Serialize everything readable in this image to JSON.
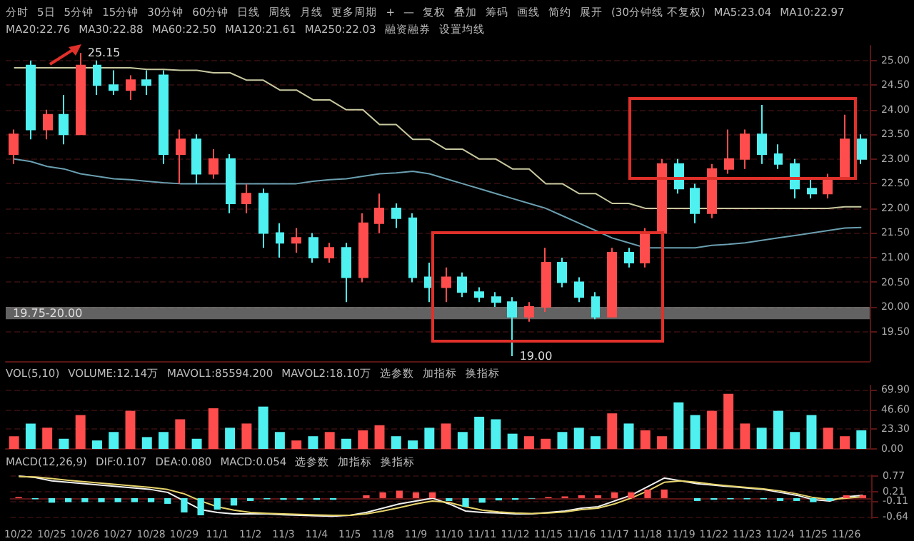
{
  "chart_data": [
    {
      "type": "candlestick",
      "annotations": [
        "分时",
        "5日",
        "5分钟",
        "15分钟",
        "30分钟",
        "60分钟",
        "日线",
        "周线",
        "月线",
        "更多周期",
        "+",
        "—",
        "复权",
        "叠加",
        "筹码",
        "画线",
        "简约",
        "展开",
        "(30分钟线 不复权)",
        "MA5:23.04",
        "MA10:22.97",
        "MA20:22.76",
        "MA30:22.88",
        "MA60:22.50",
        "MA120:21.61",
        "MA250:22.03",
        "融资融券",
        "设置均线",
        {
          "text": "25.15",
          "x": "10/26",
          "y": 25.15
        },
        {
          "text": "19.00",
          "x": "11/12",
          "y": 19.0
        }
      ],
      "categories": [
        "10/22",
        null,
        "10/25",
        null,
        "10/26",
        null,
        "10/27",
        null,
        "10/28",
        null,
        "10/29",
        null,
        "11/1",
        null,
        "11/2",
        null,
        "11/3",
        null,
        "11/4",
        null,
        "11/5",
        null,
        "11/8",
        null,
        "11/9",
        null,
        "11/10",
        null,
        "11/11",
        null,
        "11/12",
        null,
        "11/15",
        null,
        "11/16",
        null,
        "11/17",
        null,
        "11/18",
        null,
        "11/19",
        null,
        "11/22",
        null,
        "11/23",
        null,
        "11/24",
        null,
        "11/25",
        null,
        "11/26",
        null
      ],
      "ohlc": [
        [
          23.1,
          23.6,
          22.9,
          23.5
        ],
        [
          24.9,
          25.0,
          23.4,
          23.6
        ],
        [
          23.6,
          24.0,
          23.4,
          23.9
        ],
        [
          23.9,
          24.3,
          23.3,
          23.5
        ],
        [
          23.5,
          25.15,
          23.5,
          24.9
        ],
        [
          24.9,
          25.0,
          24.3,
          24.5
        ],
        [
          24.5,
          24.8,
          24.3,
          24.4
        ],
        [
          24.4,
          24.7,
          24.2,
          24.6
        ],
        [
          24.6,
          24.8,
          24.3,
          24.5
        ],
        [
          24.7,
          24.8,
          22.9,
          23.1
        ],
        [
          23.1,
          23.6,
          22.5,
          23.4
        ],
        [
          23.4,
          23.5,
          22.5,
          22.7
        ],
        [
          22.7,
          23.2,
          22.6,
          23.0
        ],
        [
          23.0,
          23.1,
          21.9,
          22.1
        ],
        [
          22.1,
          22.5,
          21.9,
          22.3
        ],
        [
          22.3,
          22.4,
          21.2,
          21.5
        ],
        [
          21.5,
          21.7,
          21.0,
          21.3
        ],
        [
          21.3,
          21.6,
          21.1,
          21.4
        ],
        [
          21.4,
          21.5,
          20.9,
          21.0
        ],
        [
          21.0,
          21.3,
          20.9,
          21.2
        ],
        [
          21.2,
          21.3,
          20.1,
          20.6
        ],
        [
          20.6,
          21.9,
          20.5,
          21.7
        ],
        [
          21.7,
          22.3,
          21.5,
          22.0
        ],
        [
          22.0,
          22.1,
          21.6,
          21.8
        ],
        [
          21.8,
          21.9,
          20.5,
          20.6
        ],
        [
          20.6,
          20.9,
          20.1,
          20.4
        ],
        [
          20.4,
          20.8,
          20.1,
          20.6
        ],
        [
          20.6,
          20.7,
          20.2,
          20.3
        ],
        [
          20.3,
          20.4,
          20.1,
          20.2
        ],
        [
          20.2,
          20.3,
          20.0,
          20.1
        ],
        [
          20.1,
          20.2,
          19.0,
          19.8
        ],
        [
          19.8,
          20.1,
          19.7,
          20.0
        ],
        [
          20.0,
          21.2,
          19.9,
          20.9
        ],
        [
          20.9,
          21.0,
          20.4,
          20.5
        ],
        [
          20.5,
          20.6,
          20.1,
          20.2
        ],
        [
          20.2,
          20.3,
          19.75,
          19.8
        ],
        [
          19.8,
          21.2,
          19.8,
          21.1
        ],
        [
          21.1,
          21.2,
          20.8,
          20.9
        ],
        [
          20.9,
          21.6,
          20.8,
          21.5
        ],
        [
          21.5,
          23.0,
          21.4,
          22.9
        ],
        [
          22.9,
          23.0,
          22.3,
          22.4
        ],
        [
          22.4,
          22.5,
          21.7,
          21.9
        ],
        [
          21.9,
          22.9,
          21.8,
          22.8
        ],
        [
          22.8,
          23.6,
          22.7,
          23.0
        ],
        [
          23.0,
          23.6,
          22.8,
          23.5
        ],
        [
          23.5,
          24.1,
          22.9,
          23.1
        ],
        [
          23.1,
          23.3,
          22.8,
          22.9
        ],
        [
          22.9,
          23.0,
          22.2,
          22.4
        ],
        [
          22.4,
          22.6,
          22.2,
          22.3
        ],
        [
          22.3,
          22.7,
          22.2,
          22.6
        ],
        [
          22.6,
          23.9,
          22.6,
          23.4
        ],
        [
          23.4,
          23.5,
          22.9,
          23.0
        ]
      ],
      "colors": [
        "#ff4d4d",
        "#4ff0f0",
        "#ff4d4d",
        "#4ff0f0",
        "#ff4d4d",
        "#4ff0f0",
        "#4ff0f0",
        "#ff4d4d",
        "#4ff0f0",
        "#4ff0f0",
        "#ff4d4d",
        "#4ff0f0",
        "#ff4d4d",
        "#4ff0f0",
        "#ff4d4d",
        "#4ff0f0",
        "#4ff0f0",
        "#ff4d4d",
        "#4ff0f0",
        "#ff4d4d",
        "#4ff0f0",
        "#ff4d4d",
        "#ff4d4d",
        "#4ff0f0",
        "#4ff0f0",
        "#4ff0f0",
        "#ff4d4d",
        "#4ff0f0",
        "#4ff0f0",
        "#4ff0f0",
        "#4ff0f0",
        "#ff4d4d",
        "#ff4d4d",
        "#4ff0f0",
        "#4ff0f0",
        "#4ff0f0",
        "#ff4d4d",
        "#4ff0f0",
        "#ff4d4d",
        "#ff4d4d",
        "#4ff0f0",
        "#4ff0f0",
        "#ff4d4d",
        "#ff4d4d",
        "#ff4d4d",
        "#4ff0f0",
        "#4ff0f0",
        "#4ff0f0",
        "#4ff0f0",
        "#ff4d4d",
        "#ff4d4d",
        "#4ff0f0"
      ],
      "series": [
        {
          "type": "line",
          "color": "#c8c8a0",
          "values": [
            24.85,
            24.85,
            24.85,
            24.85,
            24.85,
            24.85,
            24.85,
            24.85,
            24.82,
            24.82,
            24.8,
            24.8,
            24.75,
            24.75,
            24.6,
            24.6,
            24.4,
            24.4,
            24.2,
            24.2,
            24.0,
            24.0,
            23.7,
            23.7,
            23.4,
            23.4,
            23.2,
            23.2,
            23.0,
            23.0,
            22.8,
            22.8,
            22.5,
            22.5,
            22.3,
            22.3,
            22.1,
            22.1,
            22.0,
            22.0,
            22.0,
            22.0,
            22.0,
            22.0,
            22.0,
            22.0,
            22.0,
            22.0,
            22.0,
            22.0,
            22.03,
            22.03
          ]
        },
        {
          "type": "line",
          "color": "#6a9fb0",
          "values": [
            23.0,
            22.95,
            22.85,
            22.8,
            22.7,
            22.65,
            22.6,
            22.58,
            22.55,
            22.52,
            22.5,
            22.5,
            22.5,
            22.5,
            22.5,
            22.5,
            22.5,
            22.5,
            22.55,
            22.58,
            22.6,
            22.65,
            22.7,
            22.72,
            22.75,
            22.7,
            22.6,
            22.5,
            22.4,
            22.3,
            22.2,
            22.1,
            22.0,
            21.85,
            21.7,
            21.55,
            21.4,
            21.3,
            21.2,
            21.2,
            21.2,
            21.2,
            21.25,
            21.27,
            21.3,
            21.35,
            21.4,
            21.45,
            21.5,
            21.55,
            21.6,
            21.61
          ]
        }
      ],
      "bands": [
        {
          "axis": "y",
          "from": 19.75,
          "to": 20.0,
          "label": "19.75-20.00",
          "color": "#8c8c8c"
        }
      ],
      "ylim": [
        18.9,
        25.3
      ],
      "yticks": [
        {
          "value": 19.5,
          "label": "19.50"
        },
        {
          "value": 20,
          "label": "20.00"
        },
        {
          "value": 20.5,
          "label": "20.50"
        },
        {
          "value": 21,
          "label": "21.00"
        },
        {
          "value": 21.5,
          "label": "21.50"
        },
        {
          "value": 22,
          "label": "22.00"
        },
        {
          "value": 22.5,
          "label": "22.50"
        },
        {
          "value": 23,
          "label": "23.00"
        },
        {
          "value": 23.5,
          "label": "23.50"
        },
        {
          "value": 24,
          "label": "24.00"
        },
        {
          "value": 24.5,
          "label": "24.50"
        },
        {
          "value": 25,
          "label": "25.00"
        }
      ],
      "grid": "y",
      "tick_labels": "y"
    },
    {
      "type": "bar",
      "annotations": [
        "VOL(5,10)",
        "VOLUME:12.14万",
        "MAVOL1:85594.200",
        "MAVOL2:18.10万",
        "选参数",
        "加指标",
        "换指标"
      ],
      "categories": [
        "10/22",
        null,
        "10/25",
        null,
        "10/26",
        null,
        "10/27",
        null,
        "10/28",
        null,
        "10/29",
        null,
        "11/1",
        null,
        "11/2",
        null,
        "11/3",
        null,
        "11/4",
        null,
        "11/5",
        null,
        "11/8",
        null,
        "11/9",
        null,
        "11/10",
        null,
        "11/11",
        null,
        "11/12",
        null,
        "11/15",
        null,
        "11/16",
        null,
        "11/17",
        null,
        "11/18",
        null,
        "11/19",
        null,
        "11/22",
        null,
        "11/23",
        null,
        "11/24",
        null,
        "11/25",
        null,
        "11/26",
        null
      ],
      "values": [
        15,
        30,
        25,
        12,
        40,
        10,
        20,
        45,
        14,
        20,
        35,
        12,
        48,
        25,
        30,
        50,
        20,
        10,
        15,
        20,
        12,
        22,
        28,
        15,
        10,
        25,
        30,
        20,
        38,
        35,
        18,
        15,
        12,
        20,
        25,
        15,
        42,
        30,
        22,
        15,
        55,
        40,
        45,
        65,
        30,
        25,
        45,
        20,
        40,
        25,
        15,
        22
      ],
      "colors": [
        "#ff4d4d",
        "#4ff0f0",
        "#ff4d4d",
        "#4ff0f0",
        "#ff4d4d",
        "#4ff0f0",
        "#4ff0f0",
        "#ff4d4d",
        "#4ff0f0",
        "#4ff0f0",
        "#ff4d4d",
        "#4ff0f0",
        "#ff4d4d",
        "#4ff0f0",
        "#ff4d4d",
        "#4ff0f0",
        "#4ff0f0",
        "#ff4d4d",
        "#4ff0f0",
        "#ff4d4d",
        "#4ff0f0",
        "#ff4d4d",
        "#ff4d4d",
        "#4ff0f0",
        "#4ff0f0",
        "#4ff0f0",
        "#ff4d4d",
        "#4ff0f0",
        "#4ff0f0",
        "#4ff0f0",
        "#4ff0f0",
        "#ff4d4d",
        "#ff4d4d",
        "#4ff0f0",
        "#4ff0f0",
        "#4ff0f0",
        "#ff4d4d",
        "#4ff0f0",
        "#ff4d4d",
        "#ff4d4d",
        "#4ff0f0",
        "#4ff0f0",
        "#ff4d4d",
        "#ff4d4d",
        "#ff4d4d",
        "#4ff0f0",
        "#4ff0f0",
        "#4ff0f0",
        "#4ff0f0",
        "#ff4d4d",
        "#ff4d4d",
        "#4ff0f0"
      ],
      "ylim": [
        0,
        75
      ],
      "yticks": [
        {
          "value": 0,
          "label": "0.00"
        },
        {
          "value": 23.3,
          "label": "23.30"
        },
        {
          "value": 46.6,
          "label": "46.60"
        },
        {
          "value": 69.9,
          "label": "69.90"
        }
      ],
      "grid": "y",
      "tick_labels": "y"
    },
    {
      "type": "line",
      "annotations": [
        "MACD(12,26,9)",
        "DIF:0.107",
        "DEA:0.080",
        "MACD:0.054",
        "选参数",
        "加指标",
        "换指标"
      ],
      "categories": [
        "10/22",
        null,
        "10/25",
        null,
        "10/26",
        null,
        "10/27",
        null,
        "10/28",
        null,
        "10/29",
        null,
        "11/1",
        null,
        "11/2",
        null,
        "11/3",
        null,
        "11/4",
        null,
        "11/5",
        null,
        "11/8",
        null,
        "11/9",
        null,
        "11/10",
        null,
        "11/11",
        null,
        "11/12",
        null,
        "11/15",
        null,
        "11/16",
        null,
        "11/17",
        null,
        "11/18",
        null,
        "11/19",
        null,
        "11/22",
        null,
        "11/23",
        null,
        "11/24",
        null,
        "11/25",
        null,
        "11/26",
        null
      ],
      "series": [
        {
          "type": "bar",
          "values": [
            0.04,
            -0.04,
            -0.16,
            -0.14,
            -0.14,
            -0.14,
            -0.14,
            -0.14,
            -0.14,
            -0.2,
            -0.5,
            -0.6,
            -0.4,
            -0.26,
            -0.1,
            -0.04,
            -0.06,
            -0.06,
            -0.06,
            -0.06,
            0,
            0.1,
            0.2,
            0.26,
            0.2,
            0.2,
            -0.1,
            -0.3,
            -0.16,
            -0.08,
            -0.06,
            -0.02,
            0.04,
            0.06,
            0.1,
            0.1,
            0.2,
            0.2,
            0.3,
            0.3,
            0,
            -0.1,
            -0.06,
            -0.04,
            -0.04,
            -0.04,
            -0.1,
            -0.1,
            -0.14,
            -0.1,
            0.1,
            0.1
          ],
          "colors": [
            "#ff4d4d",
            "#4ff0f0",
            "#4ff0f0",
            "#4ff0f0",
            "#4ff0f0",
            "#4ff0f0",
            "#4ff0f0",
            "#4ff0f0",
            "#4ff0f0",
            "#4ff0f0",
            "#4ff0f0",
            "#4ff0f0",
            "#4ff0f0",
            "#4ff0f0",
            "#4ff0f0",
            "#4ff0f0",
            "#4ff0f0",
            "#4ff0f0",
            "#4ff0f0",
            "#4ff0f0",
            "#4ff0f0",
            "#ff4d4d",
            "#ff4d4d",
            "#ff4d4d",
            "#ff4d4d",
            "#ff4d4d",
            "#4ff0f0",
            "#4ff0f0",
            "#4ff0f0",
            "#4ff0f0",
            "#4ff0f0",
            "#4ff0f0",
            "#ff4d4d",
            "#ff4d4d",
            "#ff4d4d",
            "#ff4d4d",
            "#ff4d4d",
            "#ff4d4d",
            "#ff4d4d",
            "#ff4d4d",
            "#4ff0f0",
            "#4ff0f0",
            "#4ff0f0",
            "#4ff0f0",
            "#4ff0f0",
            "#4ff0f0",
            "#4ff0f0",
            "#4ff0f0",
            "#4ff0f0",
            "#4ff0f0",
            "#ff4d4d",
            "#ff4d4d"
          ]
        },
        {
          "type": "line",
          "color": "#f0f0f0",
          "values": [
            0.77,
            0.72,
            0.6,
            0.55,
            0.5,
            0.45,
            0.4,
            0.35,
            0.3,
            0.2,
            -0.1,
            -0.4,
            -0.5,
            -0.55,
            -0.55,
            -0.55,
            -0.58,
            -0.6,
            -0.62,
            -0.63,
            -0.6,
            -0.5,
            -0.35,
            -0.2,
            -0.1,
            0.0,
            -0.2,
            -0.45,
            -0.5,
            -0.52,
            -0.55,
            -0.55,
            -0.5,
            -0.45,
            -0.35,
            -0.3,
            -0.1,
            0.1,
            0.4,
            0.7,
            0.6,
            0.5,
            0.45,
            0.4,
            0.35,
            0.3,
            0.2,
            0.1,
            -0.05,
            -0.1,
            0.05,
            0.1
          ]
        },
        {
          "type": "line",
          "color": "#e6d36a",
          "values": [
            0.75,
            0.74,
            0.68,
            0.62,
            0.57,
            0.52,
            0.47,
            0.42,
            0.37,
            0.3,
            0.15,
            -0.1,
            -0.3,
            -0.42,
            -0.5,
            -0.53,
            -0.55,
            -0.57,
            -0.59,
            -0.6,
            -0.6,
            -0.55,
            -0.45,
            -0.33,
            -0.2,
            -0.1,
            -0.15,
            -0.3,
            -0.42,
            -0.48,
            -0.52,
            -0.54,
            -0.52,
            -0.48,
            -0.4,
            -0.35,
            -0.2,
            0.0,
            0.25,
            0.55,
            0.6,
            0.55,
            0.48,
            0.42,
            0.37,
            0.32,
            0.25,
            0.15,
            0.02,
            -0.05,
            0.0,
            0.05
          ]
        }
      ],
      "ylim": [
        -0.7,
        0.8
      ],
      "yticks": [
        {
          "value": -0.64,
          "label": "-0.64"
        },
        {
          "value": -0.11,
          "label": "-0.11"
        },
        {
          "value": 0.21,
          "label": "0.21"
        },
        {
          "value": 0.77,
          "label": "0.77"
        }
      ],
      "grid": "y"
    }
  ]
}
